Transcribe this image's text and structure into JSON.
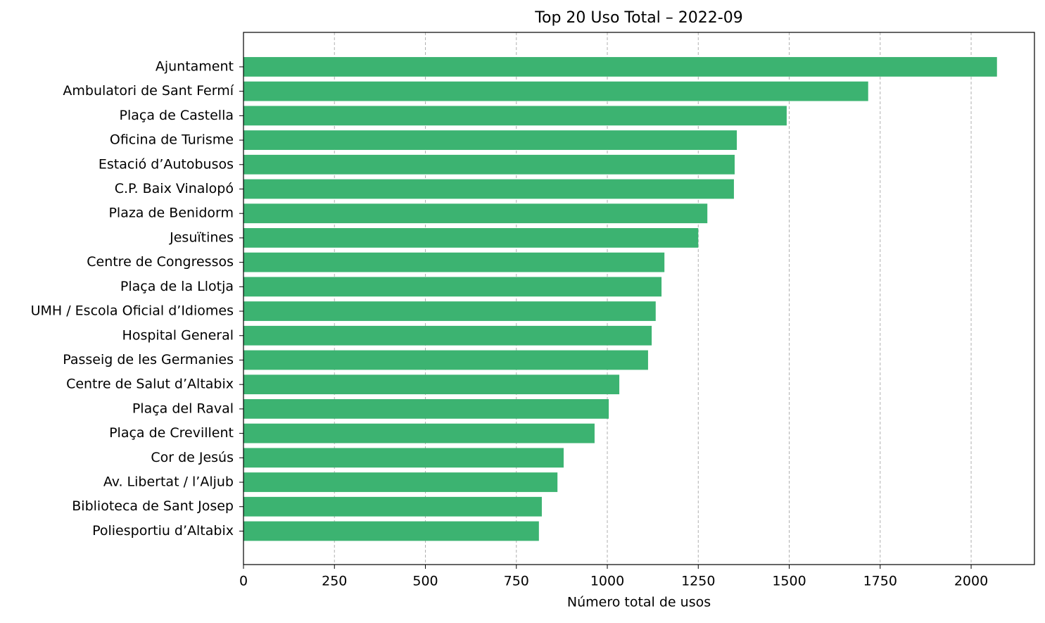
{
  "chart_data": {
    "type": "barh",
    "title": "Top 20 Uso Total – 2022-09",
    "xlabel": "Número total de usos",
    "categories": [
      "Ajuntament",
      "Ambulatori de Sant Fermí",
      "Plaça de Castella",
      "Oficina de Turisme",
      "Estació d’Autobusos",
      "C.P. Baix Vinalopó",
      "Plaza de Benidorm",
      "Jesuïtines",
      "Centre de Congressos",
      "Plaça de la Llotja",
      "UMH / Escola Oficial d’Idiomes",
      "Hospital General",
      "Passeig de les Germanies",
      "Centre de Salut d’Altabix",
      "Plaça del Raval",
      "Plaça de Crevillent",
      "Cor de Jesús",
      "Av. Libertat / l’Aljub",
      "Biblioteca de Sant Josep",
      "Poliesportiu d’Altabix"
    ],
    "values": [
      2071,
      1717,
      1493,
      1356,
      1350,
      1348,
      1275,
      1250,
      1157,
      1149,
      1133,
      1122,
      1112,
      1033,
      1004,
      965,
      880,
      863,
      820,
      812
    ],
    "color": "#3cb371",
    "xlim": [
      0,
      2174
    ],
    "xticks": [
      0,
      250,
      500,
      750,
      1000,
      1250,
      1500,
      1750,
      2000
    ],
    "grid": true
  }
}
